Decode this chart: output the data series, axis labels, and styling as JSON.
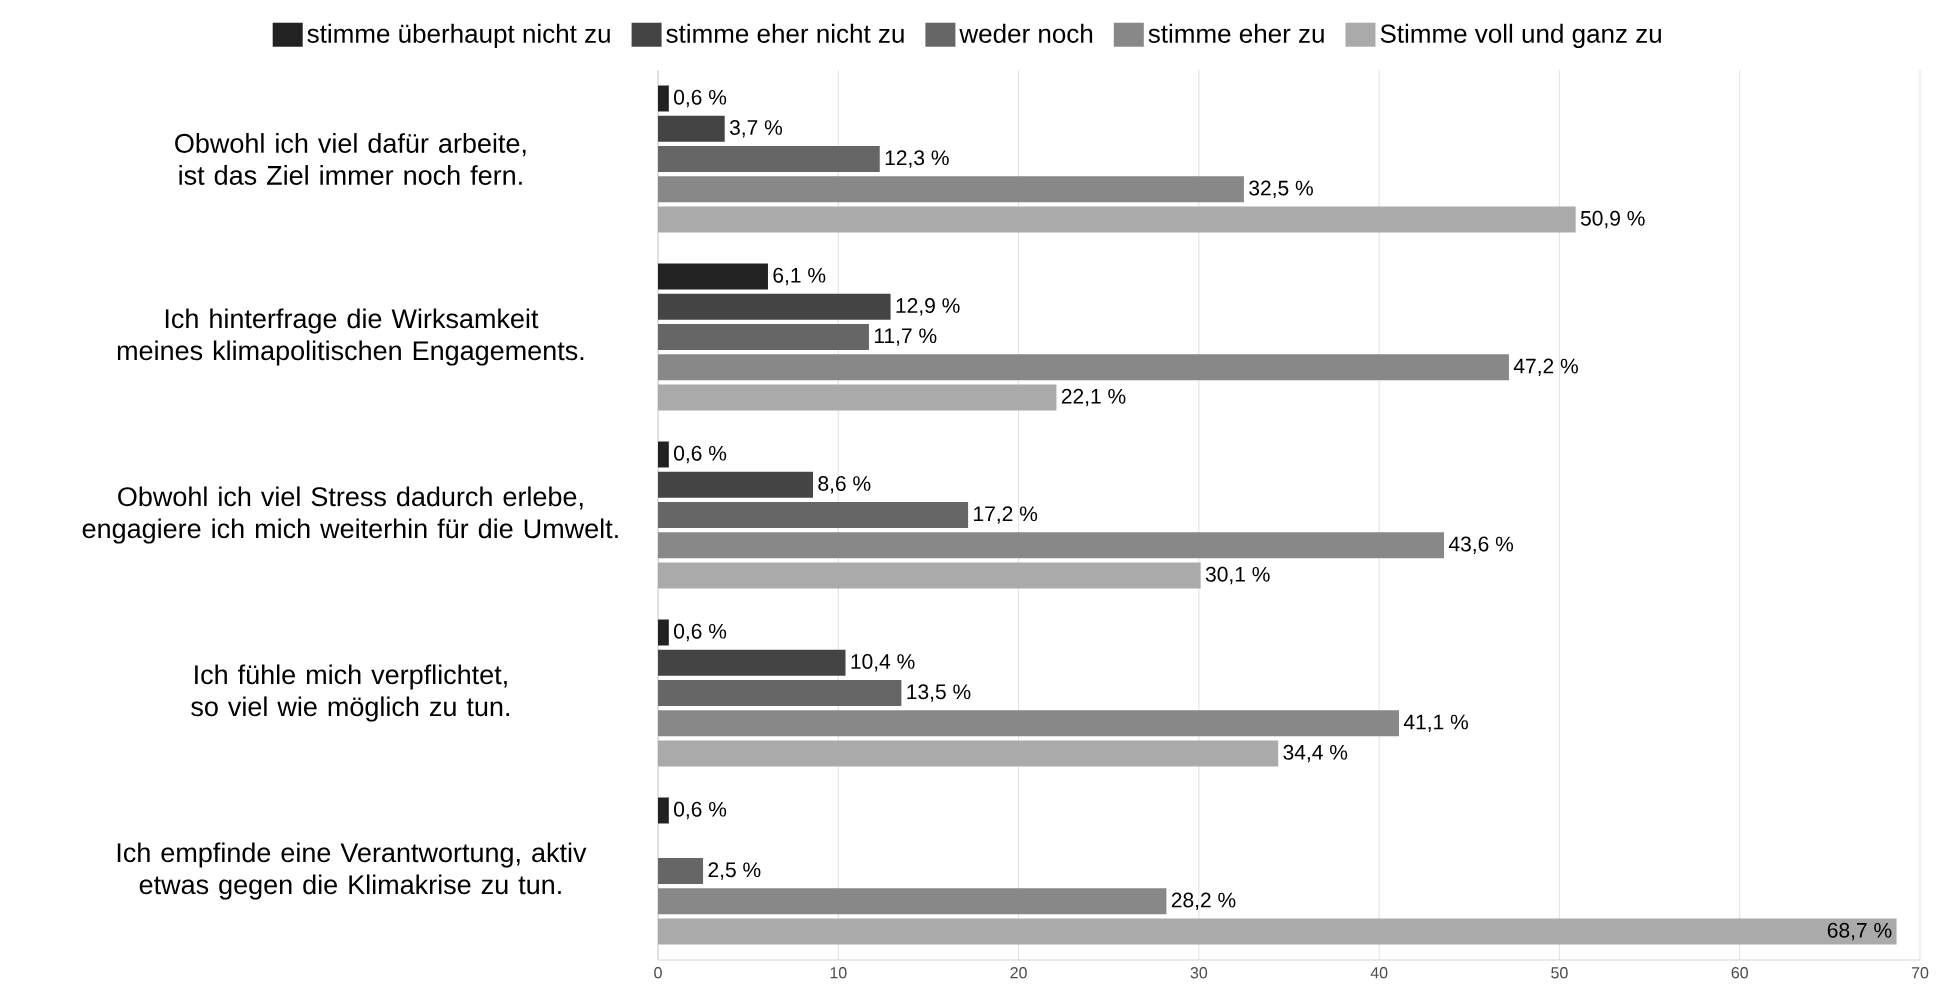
{
  "chart_data": {
    "type": "bar",
    "orientation": "horizontal",
    "categories": [
      "Obwohl ich viel dafür arbeite, ist das Ziel immer noch fern.",
      "Ich hinterfrage die Wirksamkeit meines klimapolitischen Engagements.",
      "Obwohl ich viel Stress dadurch erlebe, engagiere ich mich weiterhin für die Umwelt.",
      "Ich fühle mich verpflichtet, so viel wie möglich zu tun.",
      "Ich empfinde eine Verantwortung, aktiv etwas gegen die Klimakrise zu tun."
    ],
    "series": [
      {
        "name": "stimme überhaupt nicht zu",
        "color": "#222222",
        "values": [
          0.6,
          6.1,
          0.6,
          0.6,
          0.6
        ],
        "value_labels": [
          "0,6 %",
          "6,1 %",
          "0,6 %",
          "0,6 %",
          "0,6 %"
        ]
      },
      {
        "name": "stimme eher nicht zu",
        "color": "#444444",
        "values": [
          3.7,
          12.9,
          8.6,
          10.4,
          null
        ],
        "value_labels": [
          "3,7 %",
          "12,9 %",
          "8,6 %",
          "10,4 %",
          null
        ]
      },
      {
        "name": "weder noch",
        "color": "#666666",
        "values": [
          12.3,
          11.7,
          17.2,
          13.5,
          2.5
        ],
        "value_labels": [
          "12,3 %",
          "11,7 %",
          "17,2 %",
          "13,5 %",
          "2,5 %"
        ]
      },
      {
        "name": "stimme eher zu",
        "color": "#888888",
        "values": [
          32.5,
          47.2,
          43.6,
          41.1,
          28.2
        ],
        "value_labels": [
          "32,5 %",
          "47,2 %",
          "43,6 %",
          "41,1 %",
          "28,2 %"
        ]
      },
      {
        "name": "Stimme voll und ganz zu",
        "color": "#aaaaaa",
        "values": [
          50.9,
          22.1,
          30.1,
          34.4,
          68.7
        ],
        "value_labels": [
          "50,9 %",
          "22,1 %",
          "30,1 %",
          "34,4 %",
          "68,7 %"
        ]
      }
    ],
    "xlim": [
      0,
      70
    ],
    "xticks": [
      0,
      10,
      20,
      30,
      40,
      50,
      60,
      70
    ],
    "grid": "x",
    "legend": "top"
  }
}
